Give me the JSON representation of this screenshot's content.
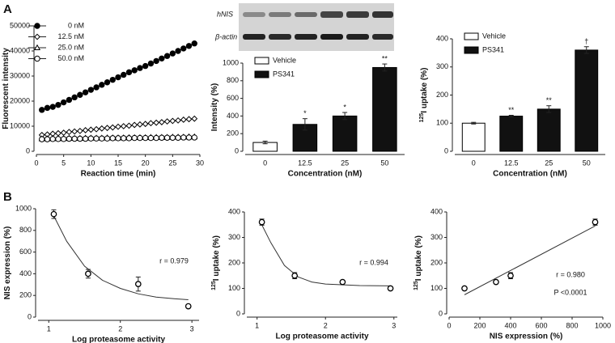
{
  "panel_labels": [
    "A",
    "B"
  ],
  "blot": {
    "labels": [
      "hNIS",
      "β-actin"
    ]
  },
  "chart_data": [
    {
      "type": "line",
      "xlabel": "Reaction time (min)",
      "ylabel": "Fluorescent intensity",
      "x": [
        1,
        2,
        3,
        4,
        5,
        6,
        7,
        8,
        9,
        10,
        11,
        12,
        13,
        14,
        15,
        16,
        17,
        18,
        19,
        20,
        21,
        22,
        23,
        24,
        25,
        26,
        27,
        28,
        29
      ],
      "xlim": [
        0,
        30
      ],
      "xticks": [
        0,
        5,
        10,
        15,
        20,
        25,
        30
      ],
      "ylim": [
        0,
        50000
      ],
      "yticks": [
        0,
        10000,
        20000,
        30000,
        40000,
        50000
      ],
      "series": [
        {
          "name": "0 nM",
          "color": "#000000",
          "marker": "circle-filled",
          "values": [
            16500,
            17300,
            17700,
            18500,
            19500,
            20500,
            21500,
            22500,
            23500,
            24500,
            25500,
            26500,
            27500,
            28500,
            29500,
            30500,
            31500,
            32300,
            33200,
            34000,
            35000,
            36000,
            37000,
            38000,
            39000,
            40000,
            41000,
            42000,
            43000
          ]
        },
        {
          "name": "12.5 nM",
          "color": "#000000",
          "marker": "diamond",
          "values": [
            6500,
            6700,
            7000,
            7200,
            7400,
            7700,
            7900,
            8100,
            8400,
            8600,
            8800,
            9100,
            9300,
            9500,
            9800,
            10000,
            10200,
            10500,
            10700,
            10900,
            11200,
            11400,
            11600,
            11900,
            12100,
            12300,
            12600,
            12800,
            13000
          ]
        },
        {
          "name": "25.0 nM",
          "color": "#000000",
          "marker": "triangle",
          "values": [
            5000,
            5000,
            5100,
            5100,
            5100,
            5200,
            5200,
            5200,
            5300,
            5300,
            5300,
            5300,
            5400,
            5400,
            5400,
            5400,
            5500,
            5500,
            5500,
            5500,
            5600,
            5600,
            5600,
            5600,
            5700,
            5700,
            5700,
            5800,
            5800
          ]
        },
        {
          "name": "50.0 nM",
          "color": "#000000",
          "marker": "circle",
          "values": [
            4800,
            4800,
            4900,
            4900,
            4900,
            5000,
            5000,
            5000,
            5000,
            5100,
            5100,
            5100,
            5100,
            5200,
            5200,
            5200,
            5200,
            5300,
            5300,
            5300,
            5300,
            5300,
            5400,
            5400,
            5400,
            5400,
            5500,
            5500,
            5500
          ]
        }
      ]
    },
    {
      "type": "bar",
      "xlabel": "Concentration  (nM)",
      "ylabel": "Intensity (%)",
      "categories": [
        "0",
        "12.5",
        "25",
        "50"
      ],
      "ylim": [
        0,
        1000
      ],
      "yticks": [
        0,
        200,
        400,
        600,
        800,
        1000
      ],
      "series": [
        {
          "name": "Vehicle",
          "color": "#ffffff",
          "values": [
            100,
            null,
            null,
            null
          ],
          "errors": [
            15,
            null,
            null,
            null
          ]
        },
        {
          "name": "PS341",
          "color": "#111111",
          "values": [
            null,
            305,
            400,
            950
          ],
          "errors": [
            null,
            65,
            40,
            40
          ]
        }
      ],
      "annotations": [
        null,
        "*",
        "*",
        "**"
      ]
    },
    {
      "type": "bar",
      "xlabel": "Concentration  (nM)",
      "ylabel_prefix": "125",
      "ylabel": "I uptake (%)",
      "categories": [
        "0",
        "12.5",
        "25",
        "50"
      ],
      "ylim": [
        0,
        400
      ],
      "yticks": [
        0,
        100,
        200,
        300,
        400
      ],
      "series": [
        {
          "name": "Vehicle",
          "color": "#ffffff",
          "values": [
            100,
            null,
            null,
            null
          ],
          "errors": [
            3,
            null,
            null,
            null
          ]
        },
        {
          "name": "PS341",
          "color": "#111111",
          "values": [
            null,
            125,
            150,
            360
          ],
          "errors": [
            null,
            3,
            12,
            12
          ]
        }
      ],
      "annotations": [
        null,
        "**",
        "**",
        "†"
      ]
    },
    {
      "type": "scatter",
      "xlabel": "Log proteasome activity",
      "ylabel": "NIS expression (%)",
      "x": [
        1.07,
        1.55,
        2.25,
        2.95
      ],
      "values": [
        950,
        400,
        305,
        100
      ],
      "errors": [
        40,
        40,
        65,
        15
      ],
      "fit": {
        "x": [
          1.05,
          1.25,
          1.5,
          1.75,
          2,
          2.25,
          2.5,
          2.75,
          2.95
        ],
        "values": [
          960,
          700,
          470,
          340,
          265,
          215,
          185,
          170,
          160
        ]
      },
      "xlim": [
        0.85,
        3.1
      ],
      "xticks": [
        1,
        2,
        3
      ],
      "ylim": [
        0,
        1000
      ],
      "yticks": [
        0,
        200,
        400,
        600,
        800,
        1000
      ],
      "annotations": [
        "r = 0.979"
      ]
    },
    {
      "type": "scatter",
      "xlabel": "Log proteasome activity",
      "ylabel_prefix": "125",
      "ylabel": "I uptake (%)",
      "x": [
        1.07,
        1.55,
        2.25,
        2.95
      ],
      "values": [
        360,
        150,
        125,
        100
      ],
      "errors": [
        12,
        12,
        3,
        3
      ],
      "fit": {
        "x": [
          1.05,
          1.2,
          1.4,
          1.6,
          1.8,
          2,
          2.5,
          2.95
        ],
        "values": [
          360,
          280,
          190,
          145,
          125,
          117,
          111,
          110
        ]
      },
      "xlim": [
        0.85,
        3.05
      ],
      "xticks": [
        1,
        2,
        3
      ],
      "ylim": [
        0,
        400
      ],
      "yticks": [
        0,
        100,
        200,
        300,
        400
      ],
      "annotations": [
        "r = 0.994"
      ]
    },
    {
      "type": "scatter",
      "xlabel": "NIS expression (%)",
      "ylabel_prefix": "125",
      "ylabel": "I uptake (%)",
      "x": [
        100,
        305,
        400,
        950
      ],
      "values": [
        100,
        125,
        150,
        360
      ],
      "errors": [
        3,
        3,
        12,
        12
      ],
      "fit": {
        "x": [
          100,
          950
        ],
        "values": [
          75,
          345
        ]
      },
      "xlim": [
        0,
        1000
      ],
      "xticks": [
        0,
        200,
        400,
        600,
        800,
        1000
      ],
      "ylim": [
        0,
        400
      ],
      "yticks": [
        0,
        100,
        200,
        300,
        400
      ],
      "annotations": [
        "r = 0.980",
        "P <0.0001"
      ]
    }
  ]
}
